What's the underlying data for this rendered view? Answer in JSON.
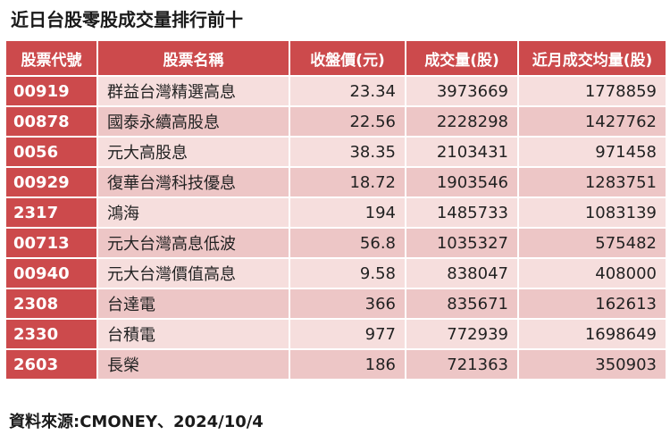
{
  "title": "近日台股零股成交量排行前十",
  "headers": [
    "股票代號",
    "股票名稱",
    "收盤價(元)",
    "成交量(股)",
    "近月成交均量(股)"
  ],
  "rows": [
    {
      "code": "00919",
      "name": "群益台灣精選高息",
      "close": "23.34",
      "volume": "3973669",
      "avg": "1778859"
    },
    {
      "code": "00878",
      "name": "國泰永續高股息",
      "close": "22.56",
      "volume": "2228298",
      "avg": "1427762"
    },
    {
      "code": "0056",
      "name": "元大高股息",
      "close": "38.35",
      "volume": "2103431",
      "avg": "971458"
    },
    {
      "code": "00929",
      "name": "復華台灣科技優息",
      "close": "18.72",
      "volume": "1903546",
      "avg": "1283751"
    },
    {
      "code": "2317",
      "name": "鴻海",
      "close": "194",
      "volume": "1485733",
      "avg": "1083139"
    },
    {
      "code": "00713",
      "name": "元大台灣高息低波",
      "close": "56.8",
      "volume": "1035327",
      "avg": "575482"
    },
    {
      "code": "00940",
      "name": "元大台灣價值高息",
      "close": "9.58",
      "volume": "838047",
      "avg": "408000"
    },
    {
      "code": "2308",
      "name": "台達電",
      "close": "366",
      "volume": "835671",
      "avg": "162613"
    },
    {
      "code": "2330",
      "name": "台積電",
      "close": "977",
      "volume": "772939",
      "avg": "1698649"
    },
    {
      "code": "2603",
      "name": "長榮",
      "close": "186",
      "volume": "721363",
      "avg": "350903"
    }
  ],
  "source": "資料來源:CMONEY、2024/10/4",
  "colors": {
    "header_bg": "#cc4a4c",
    "row_light": "#f6dedd",
    "row_dark": "#edc6c6"
  }
}
